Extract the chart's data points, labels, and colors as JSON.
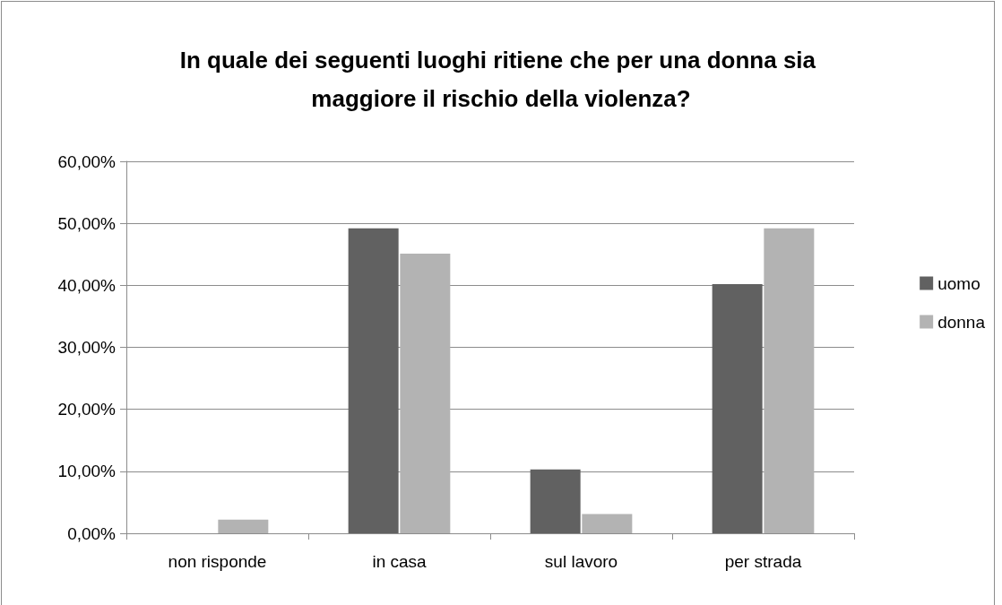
{
  "chart_data": {
    "type": "bar",
    "title": "In quale dei seguenti luoghi ritiene che per una donna sia maggiore il rischio della violenza?",
    "categories": [
      "non risponde",
      "in casa",
      "sul lavoro",
      "per strada"
    ],
    "series": [
      {
        "name": "uomo",
        "color": "#616161",
        "values": [
          0,
          49.2,
          10.3,
          40.2
        ]
      },
      {
        "name": "donna",
        "color": "#b3b3b3",
        "values": [
          2.2,
          45.1,
          3.1,
          49.2
        ]
      }
    ],
    "ylim": [
      0,
      60
    ],
    "yticks": [
      {
        "value": 0,
        "label": "0,00%"
      },
      {
        "value": 10,
        "label": "10,00%"
      },
      {
        "value": 20,
        "label": "20,00%"
      },
      {
        "value": 30,
        "label": "30,00%"
      },
      {
        "value": 40,
        "label": "40,00%"
      },
      {
        "value": 50,
        "label": "50,00%"
      },
      {
        "value": 60,
        "label": "60,00%"
      }
    ],
    "grid": "y",
    "legend": "right"
  }
}
